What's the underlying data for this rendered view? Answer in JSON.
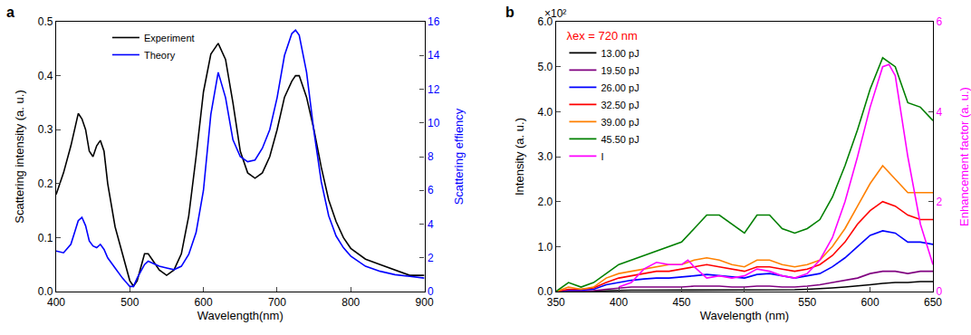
{
  "chart_data": [
    {
      "type": "line",
      "panel": "a",
      "x_label": "Wavelength(nm)",
      "y_label": "Scattering intensity (a. u.)",
      "y2_label": "Scattering effiency",
      "xlim": [
        400,
        900
      ],
      "xticks": [
        400,
        500,
        600,
        700,
        800,
        900
      ],
      "ylim": [
        0,
        0.5
      ],
      "yticks": [
        {
          "value": 0,
          "label": "0.0"
        },
        0.1,
        0.2,
        0.3,
        0.4,
        0.5
      ],
      "y2lim": [
        0,
        16
      ],
      "y2ticks": [
        0,
        2,
        4,
        6,
        8,
        10,
        12,
        14,
        16
      ],
      "grid": false,
      "legend": "top center",
      "x": [
        400,
        410,
        420,
        430,
        435,
        440,
        445,
        450,
        455,
        460,
        465,
        470,
        480,
        490,
        500,
        505,
        510,
        520,
        525,
        530,
        540,
        550,
        560,
        570,
        580,
        590,
        600,
        610,
        620,
        630,
        640,
        650,
        660,
        670,
        680,
        690,
        700,
        710,
        720,
        725,
        730,
        740,
        750,
        760,
        770,
        780,
        790,
        800,
        820,
        840,
        860,
        880,
        900
      ],
      "series": [
        {
          "name": "Experiment",
          "color": "#000000",
          "values": [
            0.18,
            0.22,
            0.27,
            0.33,
            0.32,
            0.3,
            0.26,
            0.25,
            0.27,
            0.28,
            0.26,
            0.2,
            0.12,
            0.07,
            0.02,
            0.01,
            0.02,
            0.07,
            0.07,
            0.06,
            0.04,
            0.03,
            0.04,
            0.07,
            0.14,
            0.25,
            0.37,
            0.44,
            0.46,
            0.43,
            0.35,
            0.26,
            0.22,
            0.21,
            0.22,
            0.25,
            0.3,
            0.36,
            0.39,
            0.4,
            0.4,
            0.36,
            0.3,
            0.23,
            0.17,
            0.13,
            0.1,
            0.08,
            0.06,
            0.05,
            0.04,
            0.03,
            0.03
          ]
        },
        {
          "name": "Theory",
          "color": "#0000ff",
          "axis": "y2",
          "values": [
            2.4,
            2.3,
            2.8,
            4.2,
            4.4,
            3.9,
            3.0,
            2.7,
            2.6,
            2.8,
            2.5,
            2.0,
            1.4,
            0.8,
            0.3,
            0.3,
            0.8,
            1.6,
            1.8,
            1.7,
            1.5,
            1.4,
            1.3,
            1.5,
            2.2,
            3.5,
            6.0,
            10.5,
            13.0,
            11.5,
            9.0,
            8.0,
            7.7,
            7.8,
            8.5,
            9.6,
            11.5,
            14.0,
            15.3,
            15.5,
            15.2,
            13.0,
            9.5,
            6.5,
            4.5,
            3.3,
            2.6,
            2.1,
            1.5,
            1.2,
            1.0,
            0.9,
            0.8
          ]
        }
      ]
    },
    {
      "type": "line",
      "panel": "b",
      "x_label": "Wavelength (nm)",
      "y_label": "Intensity (a. u.)",
      "y2_label": "Enhancement factor (a. u.)",
      "annotations": [
        "×10²"
      ],
      "legend_title": "λex = 720 nm",
      "xlim": [
        350,
        650
      ],
      "xticks": [
        350,
        400,
        450,
        500,
        550,
        600,
        650
      ],
      "ylim": [
        0,
        6
      ],
      "yticks": [
        {
          "value": 0,
          "label": "0.0"
        },
        {
          "value": 1,
          "label": "1.0"
        },
        {
          "value": 2,
          "label": "2.0"
        },
        {
          "value": 3,
          "label": "3.0"
        },
        {
          "value": 4,
          "label": "4.0"
        },
        {
          "value": 5,
          "label": "5.0"
        },
        {
          "value": 6,
          "label": "6.0"
        }
      ],
      "y2lim": [
        0,
        6
      ],
      "y2ticks": [
        0,
        2,
        4,
        6
      ],
      "grid": false,
      "legend": "top left",
      "x": [
        350,
        360,
        370,
        380,
        390,
        400,
        410,
        420,
        430,
        440,
        450,
        460,
        470,
        480,
        490,
        500,
        510,
        520,
        530,
        540,
        550,
        560,
        570,
        580,
        590,
        600,
        610,
        620,
        630,
        640,
        650
      ],
      "series": [
        {
          "name": "13.00 pJ",
          "color": "#000000",
          "values": [
            0,
            0,
            0,
            0.01,
            0.02,
            0.03,
            0.03,
            0.03,
            0.03,
            0.03,
            0.04,
            0.04,
            0.04,
            0.04,
            0.04,
            0.04,
            0.04,
            0.04,
            0.04,
            0.04,
            0.05,
            0.06,
            0.08,
            0.1,
            0.12,
            0.15,
            0.18,
            0.2,
            0.2,
            0.22,
            0.22
          ]
        },
        {
          "name": "19.50 pJ",
          "color": "#800080",
          "values": [
            0,
            0.01,
            0.01,
            0.02,
            0.05,
            0.08,
            0.1,
            0.1,
            0.1,
            0.1,
            0.1,
            0.12,
            0.12,
            0.12,
            0.1,
            0.1,
            0.12,
            0.12,
            0.1,
            0.1,
            0.12,
            0.15,
            0.2,
            0.25,
            0.3,
            0.4,
            0.45,
            0.45,
            0.4,
            0.45,
            0.45
          ]
        },
        {
          "name": "26.00 pJ",
          "color": "#0000ff",
          "values": [
            0,
            0.03,
            0.03,
            0.05,
            0.15,
            0.2,
            0.25,
            0.28,
            0.3,
            0.3,
            0.32,
            0.35,
            0.38,
            0.35,
            0.33,
            0.3,
            0.38,
            0.4,
            0.35,
            0.3,
            0.35,
            0.4,
            0.55,
            0.75,
            1.0,
            1.25,
            1.35,
            1.3,
            1.1,
            1.1,
            1.05
          ]
        },
        {
          "name": "32.50 pJ",
          "color": "#ff0000",
          "values": [
            0,
            0.05,
            0.05,
            0.08,
            0.2,
            0.3,
            0.35,
            0.4,
            0.45,
            0.45,
            0.5,
            0.55,
            0.6,
            0.55,
            0.5,
            0.45,
            0.55,
            0.55,
            0.5,
            0.45,
            0.5,
            0.6,
            0.8,
            1.1,
            1.5,
            1.8,
            2.0,
            1.9,
            1.7,
            1.6,
            1.6
          ]
        },
        {
          "name": "39.00 pJ",
          "color": "#ff8000",
          "values": [
            0,
            0.1,
            0.05,
            0.1,
            0.3,
            0.4,
            0.45,
            0.5,
            0.55,
            0.6,
            0.6,
            0.7,
            0.75,
            0.7,
            0.6,
            0.55,
            0.7,
            0.7,
            0.6,
            0.55,
            0.6,
            0.7,
            1.0,
            1.4,
            1.9,
            2.4,
            2.8,
            2.5,
            2.2,
            2.2,
            2.2
          ]
        },
        {
          "name": "45.50 pJ",
          "color": "#008000",
          "values": [
            0.0,
            0.2,
            0.1,
            0.2,
            0.4,
            0.6,
            0.7,
            0.8,
            0.9,
            1.0,
            1.1,
            1.4,
            1.7,
            1.7,
            1.5,
            1.3,
            1.7,
            1.7,
            1.4,
            1.3,
            1.4,
            1.6,
            2.1,
            2.8,
            3.6,
            4.5,
            5.2,
            5.0,
            4.2,
            4.1,
            3.8
          ]
        },
        {
          "name": "I",
          "color": "#ff00ff",
          "axis": "y2",
          "x": [
            400,
            410,
            420,
            430,
            440,
            450,
            455,
            460,
            470,
            480,
            490,
            500,
            510,
            520,
            530,
            540,
            550,
            560,
            570,
            580,
            590,
            600,
            610,
            615,
            620,
            630,
            640,
            650
          ],
          "values": [
            0.1,
            0.2,
            0.5,
            0.65,
            0.6,
            0.6,
            0.7,
            0.55,
            0.3,
            0.35,
            0.3,
            0.35,
            0.5,
            0.45,
            0.35,
            0.3,
            0.4,
            0.7,
            1.2,
            2.0,
            3.0,
            4.1,
            5.0,
            5.05,
            4.8,
            3.0,
            1.5,
            0.6
          ]
        }
      ]
    }
  ]
}
